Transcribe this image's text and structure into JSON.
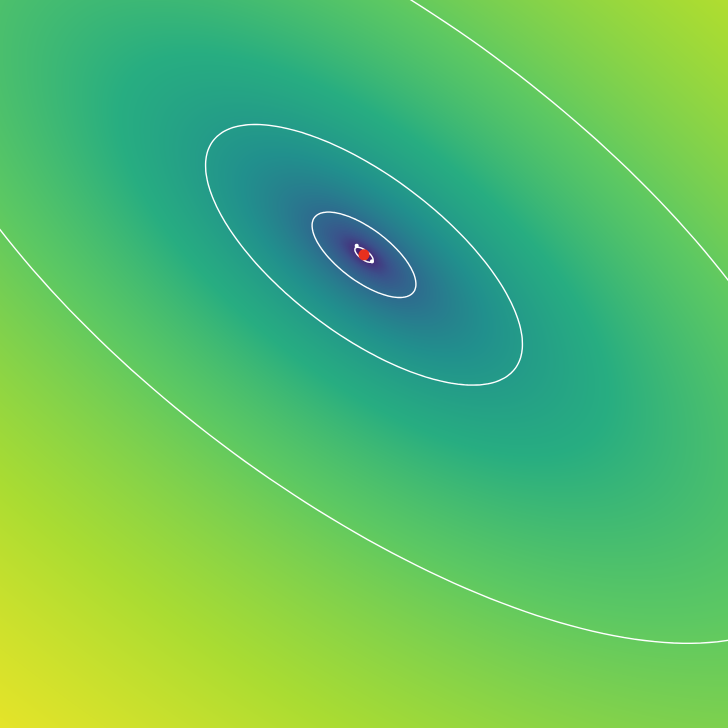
{
  "chart_data": {
    "type": "heatmap",
    "title": "",
    "xlabel": "",
    "ylabel": "",
    "xlim": [
      -1,
      1
    ],
    "ylim": [
      -1,
      1
    ],
    "grid": false,
    "legend": "none",
    "colormap": "viridis",
    "colors": {
      "contour": "#ffffff",
      "minimum_marker": "#e8301e",
      "background_low": "#440154",
      "background_high": "#fde725"
    },
    "field": {
      "center": [
        0.0,
        0.3
      ],
      "rotation_deg": -37,
      "axis_a_scale": 1.0,
      "axis_b_scale": 0.42,
      "transform": "log"
    },
    "contour_levels": [
      {
        "id": "level-1",
        "value": 0.0009
      },
      {
        "id": "level-2",
        "value": 0.029
      },
      {
        "id": "level-3",
        "value": 0.27
      },
      {
        "id": "level-4",
        "value": 2.4
      }
    ],
    "points": [
      {
        "id": "minimum",
        "x": 0.0,
        "y": 0.3,
        "color": "#e8301e"
      },
      {
        "id": "sample-1",
        "x": -0.02,
        "y": 0.325,
        "color": "#ffffff"
      },
      {
        "id": "sample-2",
        "x": 0.022,
        "y": 0.282,
        "color": "#ffffff"
      }
    ]
  }
}
